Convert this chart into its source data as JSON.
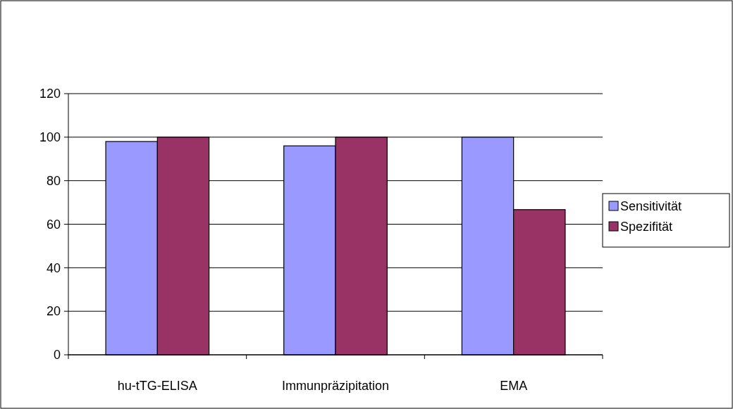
{
  "chart_data": {
    "type": "bar",
    "categories": [
      "hu-tTG-ELISA",
      "Immunpräzipitation",
      "EMA"
    ],
    "series": [
      {
        "name": "Sensitivität",
        "color": "#9999ff",
        "values": [
          98,
          96,
          100
        ]
      },
      {
        "name": "Spezifität",
        "color": "#993366",
        "values": [
          100,
          100,
          66.7
        ]
      }
    ],
    "ylim": [
      0,
      120
    ],
    "yticks": [
      0,
      20,
      40,
      60,
      80,
      100,
      120
    ],
    "grid": "y",
    "legend": "right"
  }
}
